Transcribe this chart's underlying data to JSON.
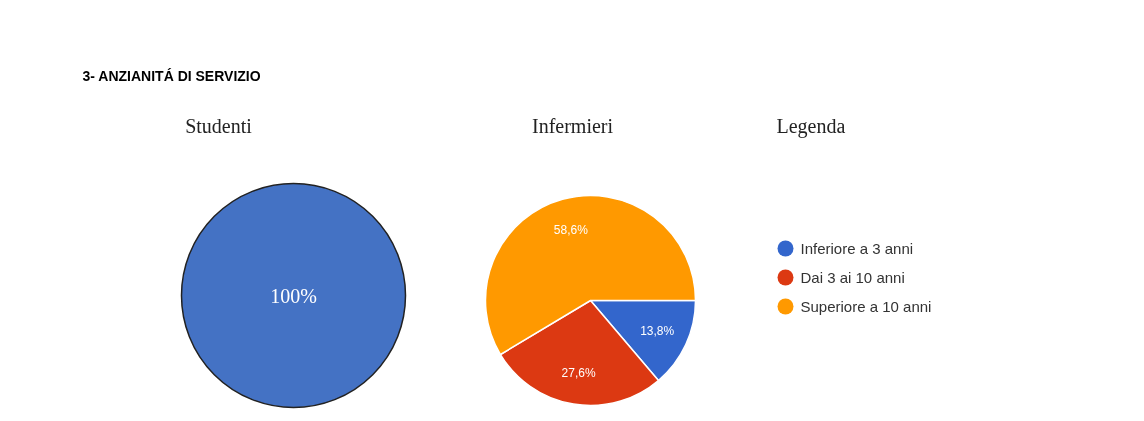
{
  "chart_data": [
    {
      "type": "pie",
      "title": "3- ANZIANITÁ DI SERVIZIO",
      "subtitle": "Studenti",
      "categories": [
        null
      ],
      "values": [
        100
      ],
      "colors": [
        "#4472c4"
      ],
      "value_labels": [
        "100%"
      ]
    },
    {
      "type": "pie",
      "subtitle": "Infermieri",
      "legend_title": "Legenda",
      "legend": "right",
      "categories": [
        "Inferiore a 3 anni",
        "Dai 3 ai 10 anni",
        "Superiore a 10 anni"
      ],
      "values": [
        13.8,
        27.6,
        58.6
      ],
      "colors": [
        "#3366cc",
        "#dc3912",
        "#ff9900"
      ],
      "value_labels": [
        "13,8%",
        "27,6%",
        "58,6%"
      ]
    }
  ]
}
